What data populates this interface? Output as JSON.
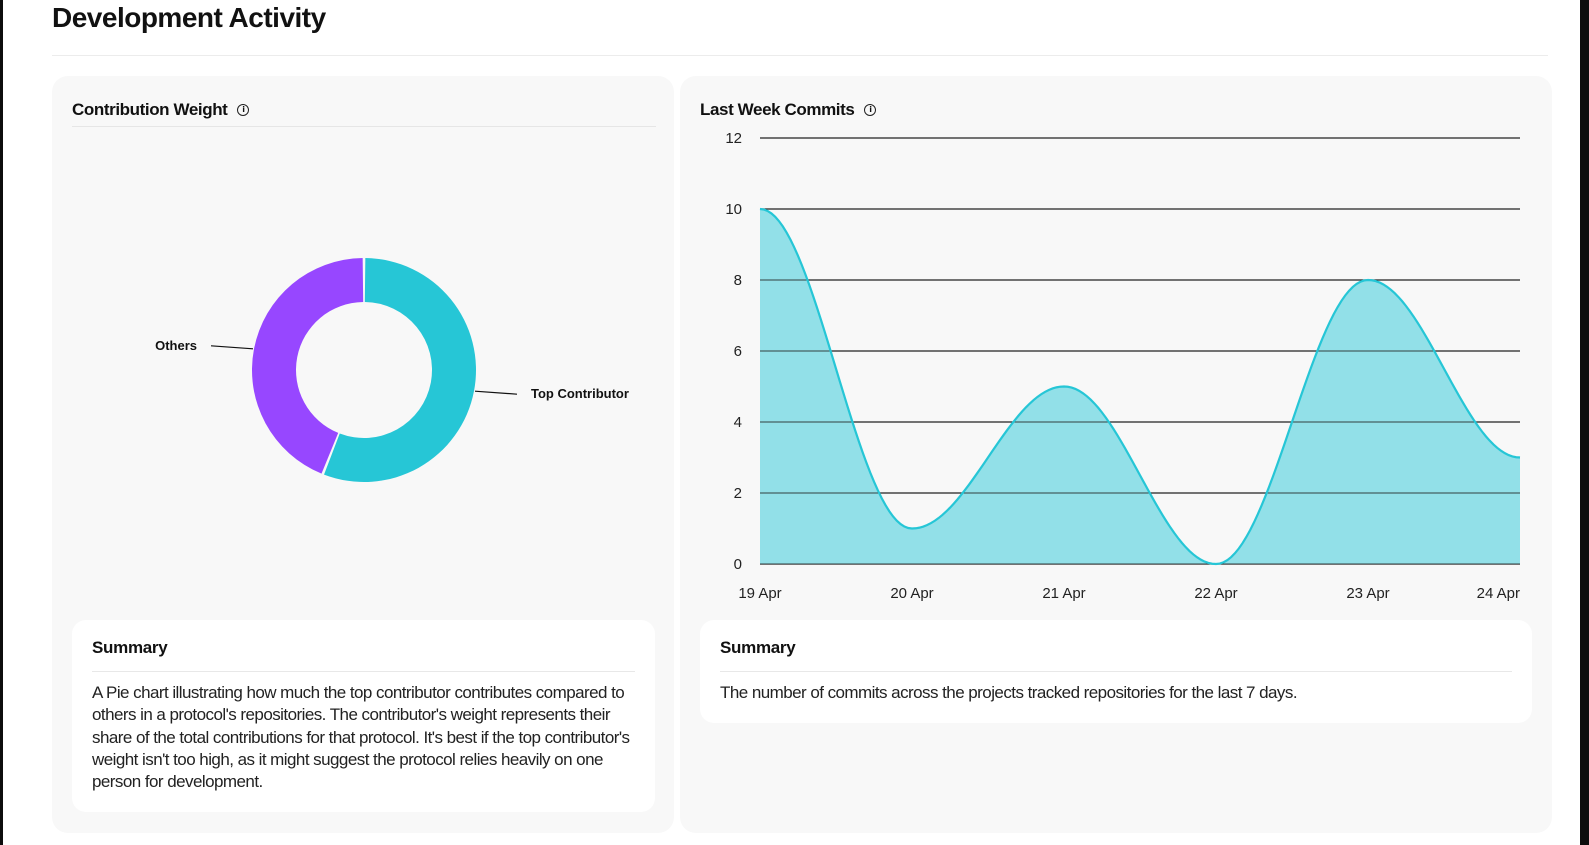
{
  "page": {
    "title": "Development Activity"
  },
  "contribution_card": {
    "title": "Contribution Weight",
    "info_icon": "info-icon",
    "summary": {
      "title": "Summary",
      "text": "A Pie chart illustrating how much the top contributor contributes compared to others in a protocol's repositories. The contributor's weight represents their share of the total contributions for that protocol. It's best if the top contributor's weight isn't too high, as it might suggest the protocol relies heavily on one person for development."
    }
  },
  "commits_card": {
    "title": "Last Week Commits",
    "info_icon": "info-icon",
    "summary": {
      "title": "Summary",
      "text": "The number of commits across the projects tracked repositories for the last 7 days."
    }
  },
  "colors": {
    "top_contributor": "#26c6d6",
    "others": "#9747ff",
    "area_fill": "#92e0e8",
    "area_line": "#26c6d6"
  },
  "chart_data": [
    {
      "type": "pie",
      "variant": "donut",
      "categories": [
        "Top Contributor",
        "Others"
      ],
      "values": [
        56,
        44
      ],
      "colors": [
        "#26c6d6",
        "#9747ff"
      ]
    },
    {
      "type": "area",
      "categories": [
        "19 Apr",
        "20 Apr",
        "21 Apr",
        "22 Apr",
        "23 Apr",
        "24 Apr"
      ],
      "values": [
        10,
        1,
        5,
        0,
        8,
        3
      ],
      "yticks": [
        0,
        2,
        4,
        6,
        8,
        10,
        12
      ],
      "ylim": [
        0,
        12
      ],
      "grid": true,
      "curve": "smooth"
    }
  ]
}
